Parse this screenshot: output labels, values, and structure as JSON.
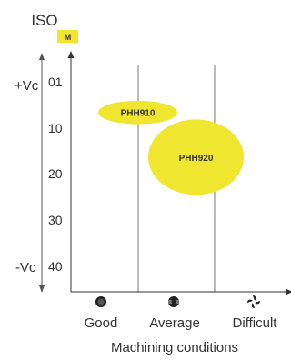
{
  "chart_data": {
    "type": "bubble",
    "title": "ISO",
    "group_badge": "M",
    "y_axis": {
      "ticks": [
        "01",
        "10",
        "20",
        "30",
        "40"
      ],
      "direction": "down",
      "upper_label": "+Vc",
      "lower_label": "-Vc"
    },
    "x_axis": {
      "title": "Machining conditions",
      "categories": [
        "Good",
        "Average",
        "Difficult"
      ],
      "category_icons": [
        "good-condition-icon",
        "average-condition-icon",
        "difficult-condition-icon"
      ]
    },
    "grid": "vertical lines between condition zones",
    "series": [
      {
        "label": "PHH910",
        "x_range": [
          "Good",
          "Average"
        ],
        "y_center": 7.5,
        "y_extent": [
          5,
          10
        ],
        "color": "#f0e62f"
      },
      {
        "label": "PHH920",
        "x_range": [
          "Average",
          "Difficult"
        ],
        "y_center": 17,
        "y_extent": [
          9,
          25
        ],
        "color": "#f0e62f"
      }
    ]
  }
}
